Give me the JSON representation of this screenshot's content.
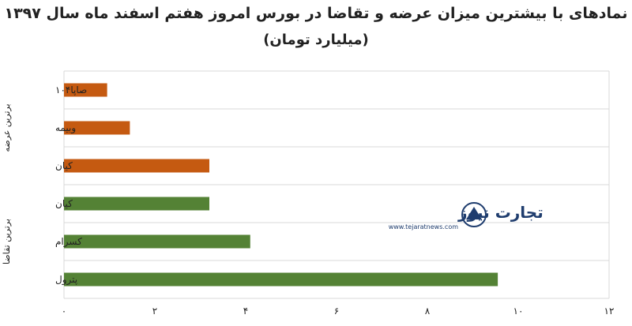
{
  "chart_data": {
    "type": "bar",
    "orientation": "horizontal",
    "title": "نمادهای با بیشترین میزان عرضه و تقاضا در بورس امروز هفتم اسفند ماه سال ۱۳۹۷",
    "subtitle": "(میلیارد تومان)",
    "categories": [
      "صاپا۱۰۴",
      "وبیمه",
      "کیان",
      "کیان",
      "کسرام",
      "پترول"
    ],
    "values": [
      0.95,
      1.45,
      3.2,
      3.2,
      4.1,
      9.55
    ],
    "groups": [
      {
        "name": "برترین عرضه",
        "categories": [
          "صاپا۱۰۴",
          "وبیمه",
          "کیان"
        ],
        "color": "#c55a11"
      },
      {
        "name": "برترین تقاضا",
        "categories": [
          "کیان",
          "کسرام",
          "پترول"
        ],
        "color": "#548235"
      }
    ],
    "xlim": [
      0,
      12
    ],
    "xticks": [
      0,
      2,
      4,
      6,
      8,
      10,
      12
    ],
    "xtick_labels": [
      "۰",
      "۲",
      "۴",
      "۶",
      "۸",
      "۱۰",
      "۱۲"
    ],
    "grid": true,
    "xlabel": "",
    "ylabel": ""
  },
  "watermark": {
    "brand": "تجارت نیوز",
    "url": "www.tejaratnews.com",
    "accent": "#1f3d6e"
  }
}
